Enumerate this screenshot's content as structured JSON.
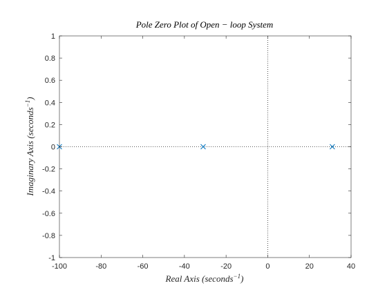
{
  "chart_data": {
    "type": "scatter",
    "title": "Pole Zero Plot of Open − loop System",
    "xlabel": "Real Axis (seconds",
    "xlabel_sup": "−1",
    "xlabel_close": ")",
    "ylabel": "Imaginary Axis (seconds",
    "ylabel_sup": "−1",
    "ylabel_close": ")",
    "xlim": [
      -100,
      40
    ],
    "ylim": [
      -1,
      1
    ],
    "xticks": [
      -100,
      -80,
      -60,
      -40,
      -20,
      0,
      20,
      40
    ],
    "yticks": [
      -1,
      -0.8,
      -0.6,
      -0.4,
      -0.2,
      0,
      0.2,
      0.4,
      0.6,
      0.8,
      1
    ],
    "xtick_labels": [
      "-100",
      "-80",
      "-60",
      "-40",
      "-20",
      "0",
      "20",
      "40"
    ],
    "ytick_labels": [
      "-1",
      "-0.8",
      "-0.6",
      "-0.4",
      "-0.2",
      "0",
      "0.2",
      "0.4",
      "0.6",
      "0.8",
      "1"
    ],
    "grid": false,
    "reference_lines": "dotted lines at x = 0 and y = 0",
    "series": [
      {
        "marker": "x",
        "color": "#0072BD",
        "points": [
          {
            "x": -100,
            "y": 0
          },
          {
            "x": -31,
            "y": 0
          },
          {
            "x": 31,
            "y": 0
          }
        ]
      }
    ]
  }
}
